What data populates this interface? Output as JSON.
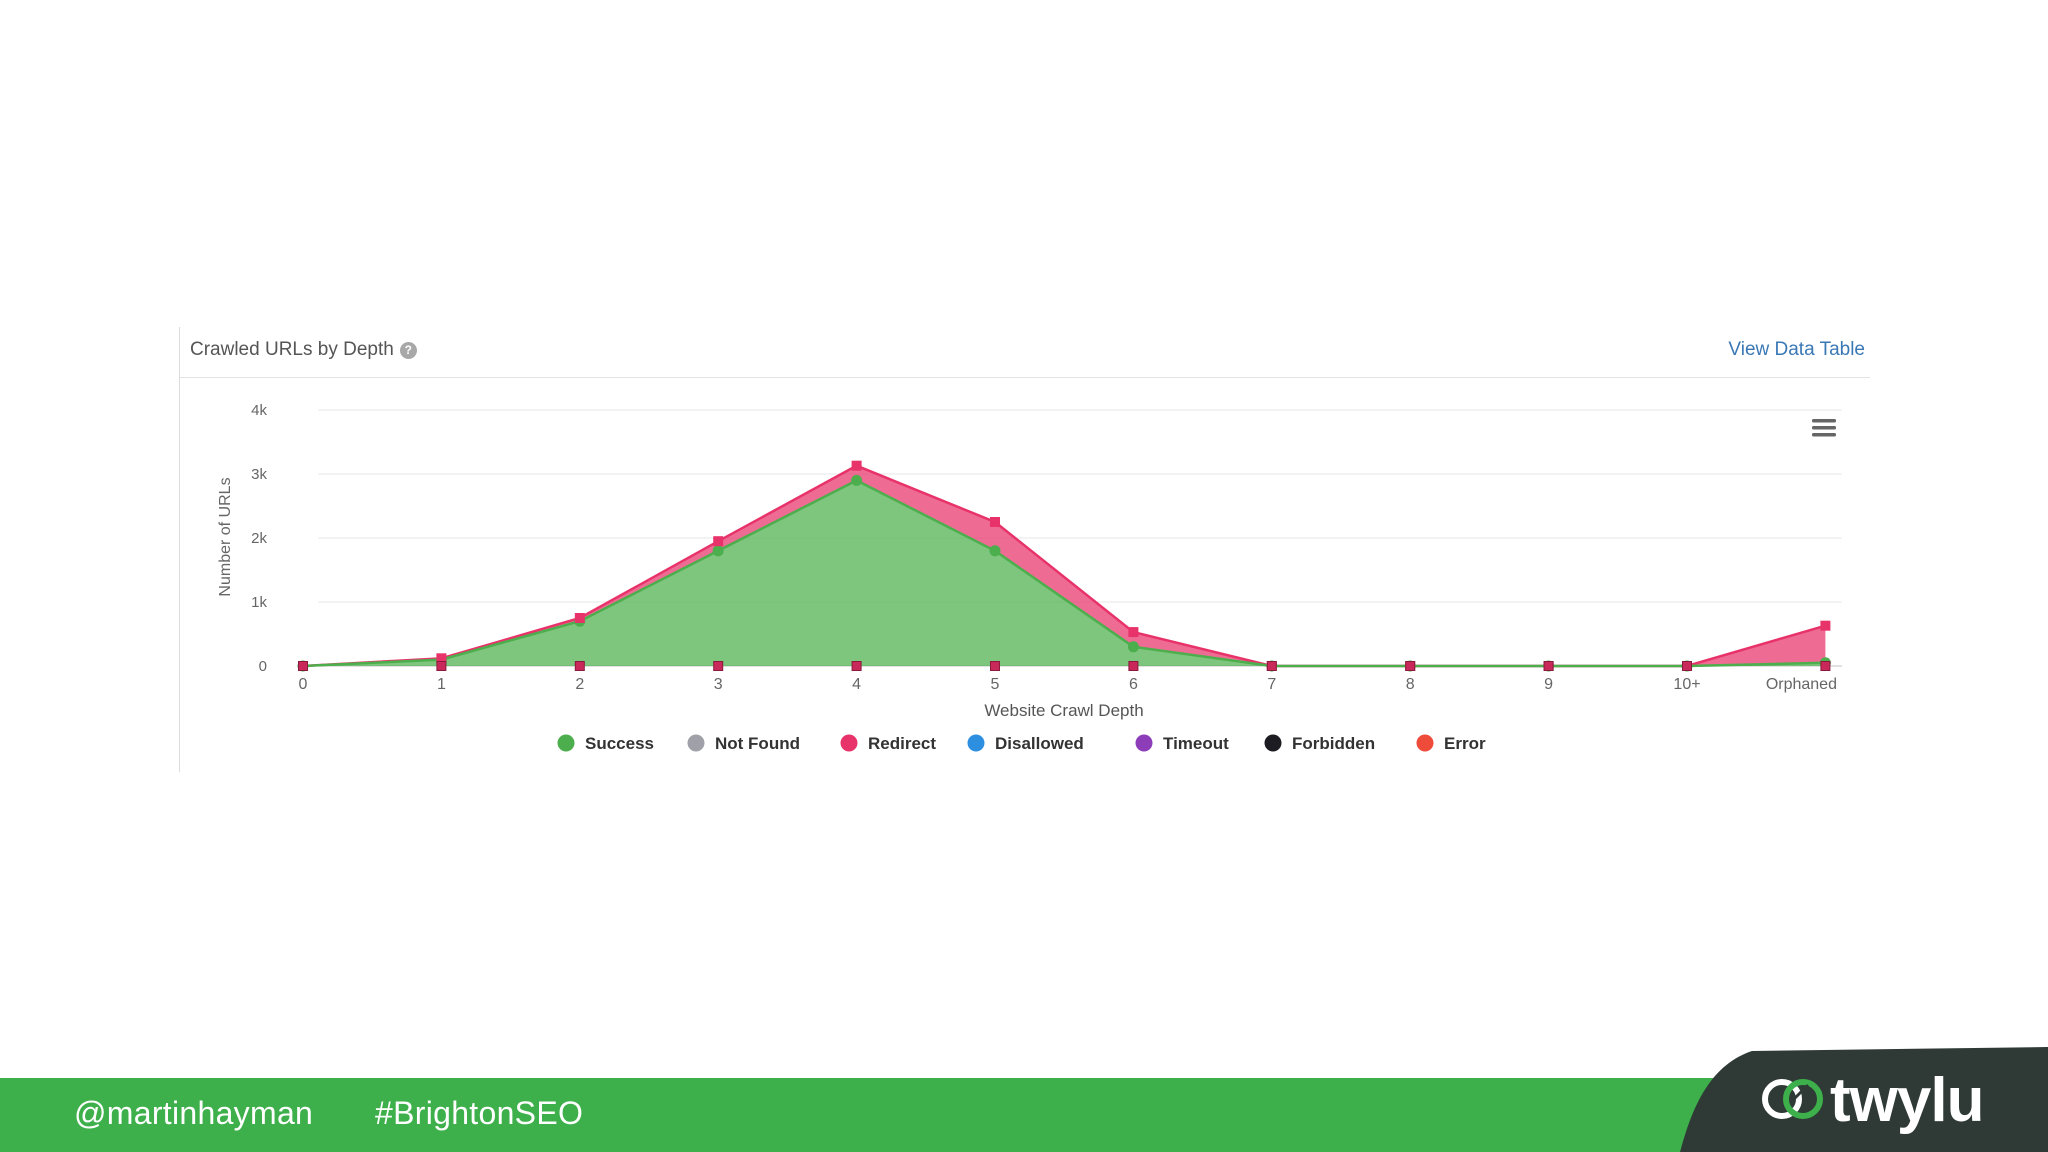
{
  "panel": {
    "title": "Crawled URLs by Depth",
    "help_glyph": "?",
    "view_data_table": "View Data Table"
  },
  "footer": {
    "twitter_handle": "@martinhayman",
    "hashtag": "#BrightonSEO",
    "brand": "twylu"
  },
  "colors": {
    "success": "#4cae4c",
    "not_found": "#a0a0a8",
    "redirect": "#e8336a",
    "disallowed": "#2d8fe0",
    "timeout": "#8e3db8",
    "forbidden": "#1c1c22",
    "error": "#ee4b3b",
    "footer_green": "#3db04b",
    "logo_dark": "#2f3a36"
  },
  "chart_data": {
    "type": "area",
    "xlabel": "Website Crawl Depth",
    "ylabel": "Number of URLs",
    "categories": [
      "0",
      "1",
      "2",
      "3",
      "4",
      "5",
      "6",
      "7",
      "8",
      "9",
      "10+",
      "Orphaned"
    ],
    "ylim": [
      0,
      4000
    ],
    "yticks": [
      0,
      1000,
      2000,
      3000,
      4000
    ],
    "ytick_labels": [
      "0",
      "1k",
      "2k",
      "3k",
      "4k"
    ],
    "grid": true,
    "legend_position": "bottom",
    "stacked": true,
    "series": [
      {
        "name": "Success",
        "color_key": "success",
        "values": [
          0,
          100,
          700,
          1800,
          2900,
          1800,
          300,
          0,
          0,
          0,
          0,
          50
        ]
      },
      {
        "name": "Not Found",
        "color_key": "not_found",
        "values": [
          0,
          0,
          0,
          0,
          0,
          0,
          0,
          0,
          0,
          0,
          0,
          0
        ]
      },
      {
        "name": "Redirect",
        "color_key": "redirect",
        "values": [
          0,
          20,
          50,
          150,
          230,
          450,
          230,
          0,
          0,
          0,
          0,
          580
        ]
      },
      {
        "name": "Disallowed",
        "color_key": "disallowed",
        "values": [
          0,
          0,
          0,
          0,
          0,
          0,
          0,
          0,
          0,
          0,
          0,
          0
        ]
      },
      {
        "name": "Timeout",
        "color_key": "timeout",
        "values": [
          0,
          0,
          0,
          0,
          0,
          0,
          0,
          0,
          0,
          0,
          0,
          0
        ]
      },
      {
        "name": "Forbidden",
        "color_key": "forbidden",
        "values": [
          0,
          0,
          0,
          0,
          0,
          0,
          0,
          0,
          0,
          0,
          0,
          0
        ]
      },
      {
        "name": "Error",
        "color_key": "error",
        "values": [
          0,
          0,
          0,
          0,
          0,
          0,
          0,
          0,
          0,
          0,
          0,
          0
        ]
      }
    ]
  }
}
